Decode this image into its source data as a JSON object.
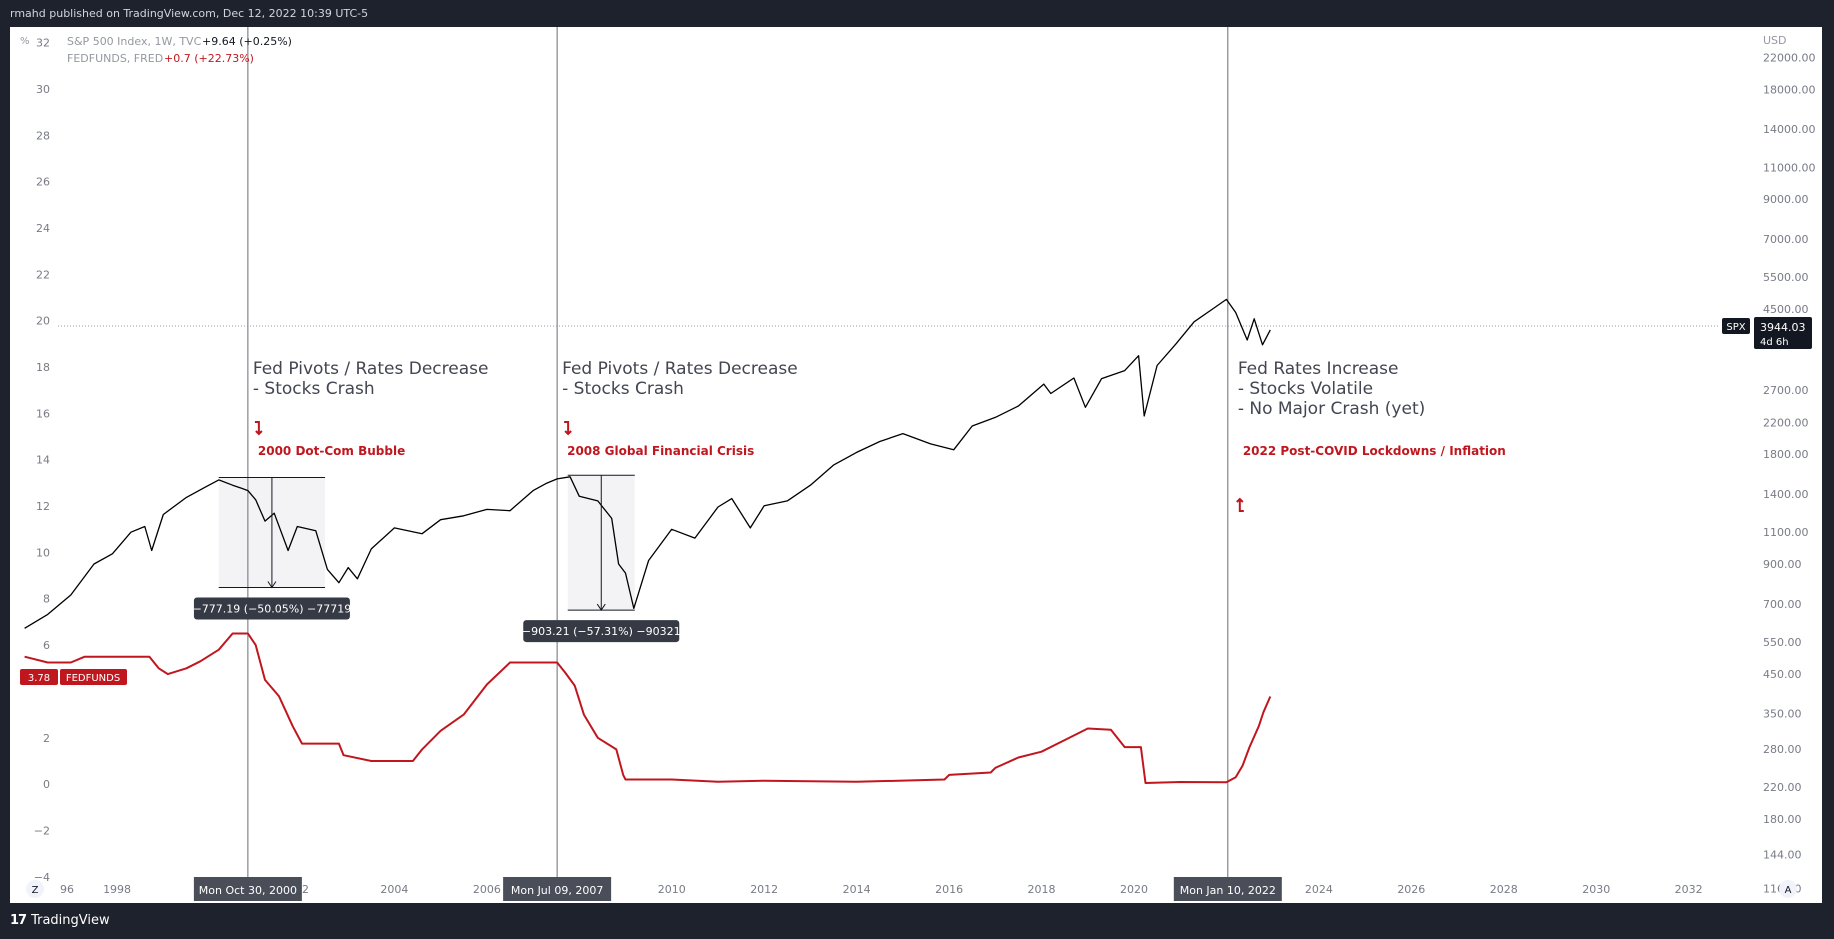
{
  "header": {
    "publish_line": "rmahd published on TradingView.com, Dec 12, 2022 10:39 UTC-5"
  },
  "footer": {
    "brand": "TradingView",
    "logo": "tv-logo-icon"
  },
  "legend": {
    "spx": {
      "name": "S&P 500 Index, 1W, TVC",
      "change": "+9.64 (+0.25%)",
      "color": "#000000"
    },
    "fed": {
      "name": "FEDFUNDS, FRED",
      "change": "+0.7 (+22.73%)",
      "color": "#c0171f"
    }
  },
  "axes": {
    "left_unit": "%",
    "right_unit": "USD",
    "left_ticks": [
      "32",
      "30",
      "28",
      "26",
      "24",
      "22",
      "20",
      "18",
      "16",
      "14",
      "12",
      "10",
      "8",
      "6",
      "2",
      "0",
      "−2",
      "−4"
    ],
    "right_ticks": [
      "22000.00",
      "18000.00",
      "14000.00",
      "11000.00",
      "9000.00",
      "7000.00",
      "5500.00",
      "4500.00",
      "2700.00",
      "2200.00",
      "1800.00",
      "1400.00",
      "1100.00",
      "900.00",
      "700.00",
      "550.00",
      "450.00",
      "350.00",
      "280.00",
      "220.00",
      "180.00",
      "144.00",
      "116.00"
    ],
    "x_ticks": [
      "96",
      "1998",
      "02",
      "2004",
      "2006",
      "2010",
      "2012",
      "2014",
      "2016",
      "2018",
      "2020",
      "2024",
      "2026",
      "2028",
      "2030",
      "2032"
    ],
    "z_button": "Z",
    "a_button": "A"
  },
  "markers": [
    {
      "date_label": "Mon Oct 30, 2000",
      "year": 2000.83
    },
    {
      "date_label": "Mon Jul 09, 2007",
      "year": 2007.52
    },
    {
      "date_label": "Mon Jan 10, 2022",
      "year": 2022.03
    }
  ],
  "annotations": [
    {
      "title": "Fed Pivots / Rates Decrease",
      "lines": [
        "- Stocks Crash"
      ],
      "event": "2000 Dot-Com Bubble",
      "arrow": "down"
    },
    {
      "title": "Fed Pivots / Rates Decrease",
      "lines": [
        "- Stocks Crash"
      ],
      "event": "2008 Global Financial Crisis",
      "arrow": "down"
    },
    {
      "title": "Fed Rates Increase",
      "lines": [
        "- Stocks Volatile",
        "- No Major Crash (yet)"
      ],
      "event": "2022 Post-COVID Lockdowns / Inflation",
      "arrow": "up"
    }
  ],
  "measurements": [
    {
      "label": "−777.19 (−50.05%) −77719",
      "from": {
        "year": 2000.2,
        "value": 1553
      },
      "to": {
        "year": 2002.5,
        "value": 776
      }
    },
    {
      "label": "−903.21 (−57.31%) −90321",
      "from": {
        "year": 2007.75,
        "value": 1576
      },
      "to": {
        "year": 2009.2,
        "value": 673
      }
    }
  ],
  "price_labels": {
    "spx": {
      "tag": "SPX",
      "value": "3944.03",
      "countdown": "4d 6h"
    },
    "fed": {
      "value": "3.78",
      "tag": "FEDFUNDS"
    }
  },
  "chart_data": {
    "type": "line",
    "x_range": [
      1995.9,
      2033.5
    ],
    "left_axis": {
      "label": "%",
      "range": [
        -5,
        32.5
      ]
    },
    "right_axis": {
      "label": "USD",
      "scale": "log",
      "range": [
        108,
        26000
      ]
    },
    "series": [
      {
        "name": "S&P 500 Index, 1W, TVC",
        "axis": "right",
        "color": "#000000",
        "points": [
          [
            1996.0,
            600
          ],
          [
            1996.5,
            655
          ],
          [
            1997.0,
            740
          ],
          [
            1997.5,
            900
          ],
          [
            1997.9,
            960
          ],
          [
            1998.3,
            1100
          ],
          [
            1998.6,
            1140
          ],
          [
            1998.75,
            980
          ],
          [
            1999.0,
            1230
          ],
          [
            1999.5,
            1370
          ],
          [
            1999.9,
            1460
          ],
          [
            2000.2,
            1530
          ],
          [
            2000.5,
            1480
          ],
          [
            2000.7,
            1450
          ],
          [
            2000.83,
            1430
          ],
          [
            2001.0,
            1350
          ],
          [
            2001.2,
            1180
          ],
          [
            2001.4,
            1240
          ],
          [
            2001.7,
            980
          ],
          [
            2001.9,
            1140
          ],
          [
            2002.3,
            1110
          ],
          [
            2002.55,
            870
          ],
          [
            2002.8,
            800
          ],
          [
            2003.0,
            880
          ],
          [
            2003.2,
            820
          ],
          [
            2003.5,
            990
          ],
          [
            2004.0,
            1130
          ],
          [
            2004.6,
            1090
          ],
          [
            2005.0,
            1190
          ],
          [
            2005.5,
            1220
          ],
          [
            2006.0,
            1270
          ],
          [
            2006.5,
            1260
          ],
          [
            2007.0,
            1430
          ],
          [
            2007.3,
            1500
          ],
          [
            2007.52,
            1540
          ],
          [
            2007.8,
            1560
          ],
          [
            2008.0,
            1380
          ],
          [
            2008.4,
            1340
          ],
          [
            2008.7,
            1200
          ],
          [
            2008.85,
            900
          ],
          [
            2009.0,
            850
          ],
          [
            2009.18,
            680
          ],
          [
            2009.5,
            920
          ],
          [
            2010.0,
            1120
          ],
          [
            2010.5,
            1060
          ],
          [
            2011.0,
            1290
          ],
          [
            2011.3,
            1360
          ],
          [
            2011.7,
            1130
          ],
          [
            2012.0,
            1300
          ],
          [
            2012.5,
            1340
          ],
          [
            2013.0,
            1480
          ],
          [
            2013.5,
            1680
          ],
          [
            2014.0,
            1820
          ],
          [
            2014.5,
            1950
          ],
          [
            2015.0,
            2050
          ],
          [
            2015.6,
            1920
          ],
          [
            2016.1,
            1850
          ],
          [
            2016.5,
            2150
          ],
          [
            2017.0,
            2270
          ],
          [
            2017.5,
            2440
          ],
          [
            2018.05,
            2800
          ],
          [
            2018.2,
            2640
          ],
          [
            2018.7,
            2910
          ],
          [
            2018.95,
            2420
          ],
          [
            2019.3,
            2900
          ],
          [
            2019.8,
            3050
          ],
          [
            2020.1,
            3350
          ],
          [
            2020.22,
            2290
          ],
          [
            2020.5,
            3150
          ],
          [
            2020.9,
            3600
          ],
          [
            2021.3,
            4150
          ],
          [
            2021.7,
            4500
          ],
          [
            2022.0,
            4780
          ],
          [
            2022.2,
            4400
          ],
          [
            2022.45,
            3700
          ],
          [
            2022.6,
            4230
          ],
          [
            2022.78,
            3590
          ],
          [
            2022.95,
            3944.03
          ]
        ]
      },
      {
        "name": "FEDFUNDS, FRED",
        "axis": "left",
        "color": "#c0171f",
        "points": [
          [
            1996.0,
            5.5
          ],
          [
            1996.5,
            5.25
          ],
          [
            1997.0,
            5.25
          ],
          [
            1997.3,
            5.5
          ],
          [
            1998.7,
            5.5
          ],
          [
            1998.9,
            5.0
          ],
          [
            1999.1,
            4.75
          ],
          [
            1999.5,
            5.0
          ],
          [
            1999.8,
            5.3
          ],
          [
            2000.2,
            5.8
          ],
          [
            2000.5,
            6.5
          ],
          [
            2000.83,
            6.5
          ],
          [
            2001.0,
            6.0
          ],
          [
            2001.2,
            4.5
          ],
          [
            2001.5,
            3.8
          ],
          [
            2001.8,
            2.5
          ],
          [
            2002.0,
            1.75
          ],
          [
            2002.8,
            1.75
          ],
          [
            2002.9,
            1.25
          ],
          [
            2003.5,
            1.0
          ],
          [
            2004.4,
            1.0
          ],
          [
            2004.6,
            1.5
          ],
          [
            2005.0,
            2.3
          ],
          [
            2005.5,
            3.0
          ],
          [
            2006.0,
            4.3
          ],
          [
            2006.5,
            5.25
          ],
          [
            2007.52,
            5.25
          ],
          [
            2007.7,
            4.8
          ],
          [
            2007.9,
            4.25
          ],
          [
            2008.1,
            3.0
          ],
          [
            2008.4,
            2.0
          ],
          [
            2008.8,
            1.5
          ],
          [
            2008.95,
            0.4
          ],
          [
            2009.0,
            0.2
          ],
          [
            2010.0,
            0.2
          ],
          [
            2011.0,
            0.1
          ],
          [
            2012.0,
            0.15
          ],
          [
            2014.0,
            0.1
          ],
          [
            2015.9,
            0.2
          ],
          [
            2016.0,
            0.4
          ],
          [
            2016.9,
            0.5
          ],
          [
            2017.0,
            0.7
          ],
          [
            2017.5,
            1.15
          ],
          [
            2018.0,
            1.4
          ],
          [
            2018.5,
            1.9
          ],
          [
            2019.0,
            2.4
          ],
          [
            2019.5,
            2.35
          ],
          [
            2019.8,
            1.6
          ],
          [
            2020.15,
            1.6
          ],
          [
            2020.25,
            0.05
          ],
          [
            2021.0,
            0.09
          ],
          [
            2022.0,
            0.08
          ],
          [
            2022.2,
            0.3
          ],
          [
            2022.35,
            0.8
          ],
          [
            2022.5,
            1.6
          ],
          [
            2022.7,
            2.5
          ],
          [
            2022.8,
            3.1
          ],
          [
            2022.95,
            3.78
          ]
        ]
      }
    ],
    "vertical_markers": [
      2000.83,
      2007.52,
      2022.03
    ],
    "spx_last": 3944.03,
    "fed_last": 3.78
  }
}
